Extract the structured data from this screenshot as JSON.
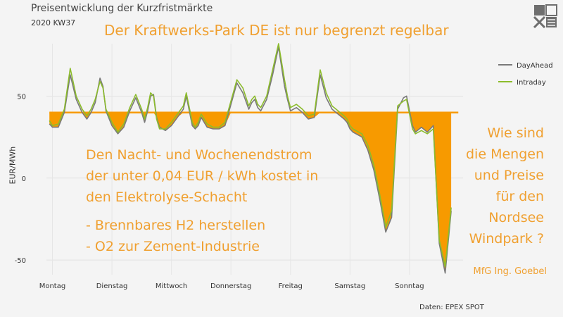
{
  "title": "Preisentwicklung der Kurzfristmärkte",
  "subtitle": "2020 KW37",
  "headline": "Der Kraftwerks-Park DE ist nur begrenzt regelbar",
  "left_text": {
    "line1": "Den Nacht- und Wochenendstrom",
    "line2": "der unter 0,04 EUR / kWh kostet in",
    "line3": "den Elektrolyse-Schacht",
    "line4": "- Brennbares H2 herstellen",
    "line5": "- O2 zur Zement-Industrie"
  },
  "right_text": {
    "line1": "Wie sind",
    "line2": "die Mengen",
    "line3": "und Preise",
    "line4": "für den",
    "line5": "Nordsee",
    "line6": "Windpark ?"
  },
  "signature": "MfG Ing. Goebel",
  "source": "Daten: EPEX SPOT",
  "colors": {
    "dayahead": "#7a7a7a",
    "intraday": "#8cbc2c",
    "threshold": "#f79a00",
    "fill": "#f79a00",
    "annotation": "#f0a030"
  },
  "chart_data": {
    "type": "line",
    "ylabel": "EUR/MWh",
    "ylim": [
      -59,
      82
    ],
    "xlim": [
      0,
      7
    ],
    "y_ticks": [
      50,
      0,
      -50
    ],
    "x_tick_labels": [
      "Montag",
      "Dienstag",
      "Mittwoch",
      "Donnerstag",
      "Freitag",
      "Samstag",
      "Sonntag"
    ],
    "threshold": 40,
    "legend_position": "right",
    "grid": true,
    "series": [
      {
        "name": "DayAhead",
        "x": [
          0.05,
          0.1,
          0.2,
          0.3,
          0.4,
          0.5,
          0.6,
          0.68,
          0.75,
          0.82,
          0.9,
          0.95,
          1.0,
          1.1,
          1.2,
          1.3,
          1.4,
          1.5,
          1.6,
          1.65,
          1.7,
          1.75,
          1.8,
          1.85,
          1.9,
          2.0,
          2.1,
          2.2,
          2.3,
          2.35,
          2.4,
          2.45,
          2.5,
          2.55,
          2.6,
          2.7,
          2.8,
          2.9,
          3.0,
          3.1,
          3.2,
          3.3,
          3.4,
          3.45,
          3.5,
          3.55,
          3.6,
          3.7,
          3.8,
          3.9,
          4.0,
          4.05,
          4.1,
          4.2,
          4.3,
          4.4,
          4.5,
          4.6,
          4.7,
          4.8,
          4.9,
          5.0,
          5.05,
          5.1,
          5.15,
          5.2,
          5.3,
          5.4,
          5.5,
          5.6,
          5.7,
          5.8,
          5.9,
          6.0,
          6.05,
          6.1,
          6.15,
          6.2,
          6.3,
          6.4,
          6.5,
          6.6,
          6.7,
          6.8
        ],
        "values": [
          33,
          31,
          31,
          40,
          63,
          48,
          40,
          36,
          40,
          46,
          61,
          56,
          41,
          32,
          27,
          31,
          41,
          49,
          40,
          34,
          41,
          50,
          51,
          37,
          31,
          29,
          32,
          37,
          42,
          50,
          41,
          32,
          30,
          32,
          37,
          31,
          30,
          30,
          32,
          45,
          58,
          52,
          42,
          46,
          48,
          43,
          41,
          48,
          63,
          80,
          56,
          48,
          41,
          43,
          40,
          36,
          37,
          63,
          49,
          42,
          39,
          36,
          34,
          30,
          28,
          27,
          25,
          17,
          5,
          -13,
          -33,
          -24,
          42,
          49,
          50,
          41,
          32,
          28,
          31,
          28,
          32,
          -40,
          -58,
          -20
        ]
      },
      {
        "name": "Intraday",
        "x": [
          0.05,
          0.1,
          0.2,
          0.3,
          0.4,
          0.5,
          0.6,
          0.68,
          0.75,
          0.82,
          0.9,
          0.95,
          1.0,
          1.1,
          1.2,
          1.3,
          1.4,
          1.5,
          1.6,
          1.65,
          1.7,
          1.75,
          1.8,
          1.85,
          1.9,
          2.0,
          2.1,
          2.2,
          2.3,
          2.35,
          2.4,
          2.45,
          2.5,
          2.55,
          2.6,
          2.7,
          2.8,
          2.9,
          3.0,
          3.1,
          3.2,
          3.3,
          3.4,
          3.45,
          3.5,
          3.55,
          3.6,
          3.7,
          3.8,
          3.9,
          4.0,
          4.05,
          4.1,
          4.2,
          4.3,
          4.4,
          4.5,
          4.6,
          4.7,
          4.8,
          4.9,
          5.0,
          5.05,
          5.1,
          5.15,
          5.2,
          5.3,
          5.4,
          5.5,
          5.6,
          5.7,
          5.8,
          5.9,
          6.0,
          6.05,
          6.1,
          6.15,
          6.2,
          6.3,
          6.4,
          6.5,
          6.6,
          6.7,
          6.8
        ],
        "values": [
          35,
          32,
          33,
          42,
          67,
          50,
          42,
          38,
          42,
          48,
          59,
          55,
          42,
          34,
          28,
          33,
          43,
          51,
          42,
          36,
          43,
          52,
          50,
          36,
          30,
          30,
          34,
          39,
          44,
          52,
          43,
          34,
          31,
          34,
          39,
          33,
          31,
          31,
          34,
          47,
          60,
          55,
          44,
          48,
          50,
          45,
          43,
          50,
          66,
          82,
          60,
          50,
          43,
          45,
          42,
          38,
          39,
          66,
          52,
          44,
          41,
          38,
          36,
          32,
          30,
          29,
          27,
          20,
          8,
          -10,
          -30,
          -20,
          44,
          47,
          48,
          39,
          30,
          27,
          29,
          27,
          30,
          -38,
          -54,
          -18
        ]
      }
    ]
  }
}
